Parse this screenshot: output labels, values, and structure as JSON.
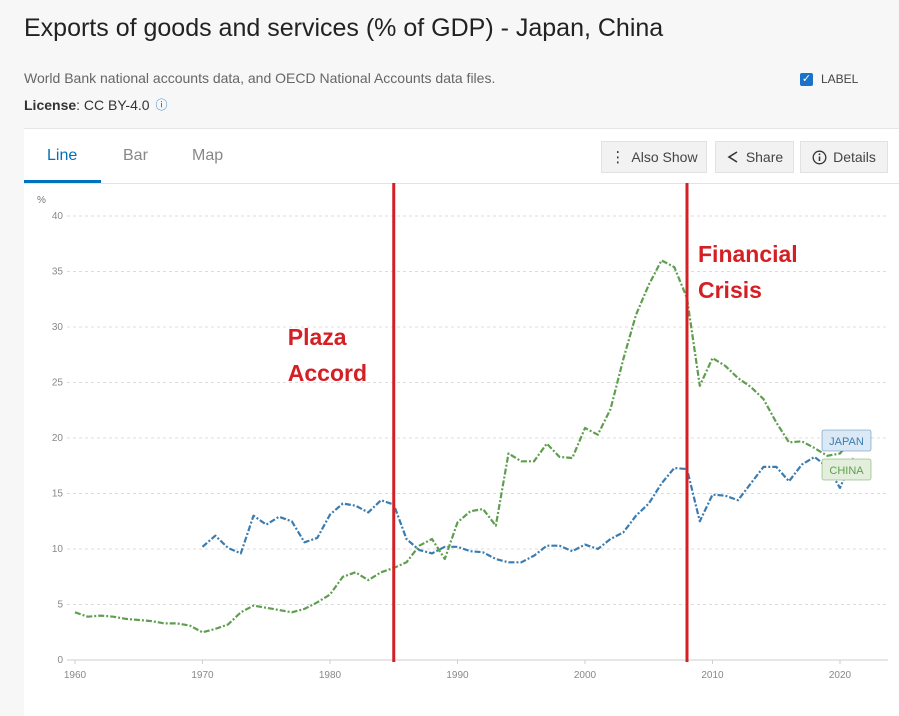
{
  "header": {
    "title": "Exports of goods and services (% of GDP) - Japan, China",
    "source": "World Bank national accounts data, and OECD National Accounts data files.",
    "license_label": "License",
    "license_value": ": CC BY-4.0",
    "info_icon": "ⓘ"
  },
  "tabs": [
    {
      "label": "Line",
      "active": true
    },
    {
      "label": "Bar",
      "active": false
    },
    {
      "label": "Map",
      "active": false
    }
  ],
  "toolbar": {
    "also_show": "Also Show",
    "share": "Share",
    "details": "Details"
  },
  "label_toggle": {
    "label": "LABEL",
    "checked": true
  },
  "annotations": [
    {
      "text_line1": "Plaza",
      "text_line2": "Accord",
      "year": 1985
    },
    {
      "text_line1": "Financial",
      "text_line2": "Crisis",
      "year": 2008
    }
  ],
  "colors": {
    "japan": "#3b7cb0",
    "china": "#5f9e4f",
    "annotation": "#d42025",
    "japan_tag_bg": "#dbe9f6",
    "china_tag_bg": "#e3efdc"
  },
  "chart_data": {
    "type": "line",
    "ylabel": "%",
    "xlim": [
      1960,
      2023
    ],
    "ylim": [
      0,
      40
    ],
    "x_ticks": [
      1960,
      1970,
      1980,
      1990,
      2000,
      2010,
      2020
    ],
    "y_ticks": [
      0,
      5,
      10,
      15,
      20,
      25,
      30,
      35,
      40
    ],
    "grid": true,
    "series": [
      {
        "name": "JAPAN",
        "x": [
          1970,
          1971,
          1972,
          1973,
          1974,
          1975,
          1976,
          1977,
          1978,
          1979,
          1980,
          1981,
          1982,
          1983,
          1984,
          1985,
          1986,
          1987,
          1988,
          1989,
          1990,
          1991,
          1992,
          1993,
          1994,
          1995,
          1996,
          1997,
          1998,
          1999,
          2000,
          2001,
          2002,
          2003,
          2004,
          2005,
          2006,
          2007,
          2008,
          2009,
          2010,
          2011,
          2012,
          2013,
          2014,
          2015,
          2016,
          2017,
          2018,
          2019,
          2020,
          2021
        ],
        "y": [
          10.2,
          11.2,
          10.1,
          9.6,
          13.0,
          12.2,
          12.9,
          12.5,
          10.6,
          11.0,
          13.1,
          14.1,
          13.9,
          13.3,
          14.4,
          14.0,
          10.9,
          9.9,
          9.6,
          10.2,
          10.2,
          9.8,
          9.7,
          9.1,
          8.8,
          8.8,
          9.4,
          10.3,
          10.3,
          9.8,
          10.4,
          10.0,
          10.9,
          11.5,
          13.0,
          14.1,
          15.9,
          17.3,
          17.2,
          12.5,
          14.9,
          14.8,
          14.4,
          15.9,
          17.4,
          17.4,
          16.1,
          17.6,
          18.3,
          17.4,
          15.5,
          18.2
        ]
      },
      {
        "name": "CHINA",
        "x": [
          1960,
          1961,
          1962,
          1963,
          1964,
          1965,
          1966,
          1967,
          1968,
          1969,
          1970,
          1971,
          1972,
          1973,
          1974,
          1975,
          1976,
          1977,
          1978,
          1979,
          1980,
          1981,
          1982,
          1983,
          1984,
          1985,
          1986,
          1987,
          1988,
          1989,
          1990,
          1991,
          1992,
          1993,
          1994,
          1995,
          1996,
          1997,
          1998,
          1999,
          2000,
          2001,
          2002,
          2003,
          2004,
          2005,
          2006,
          2007,
          2008,
          2009,
          2010,
          2011,
          2012,
          2013,
          2014,
          2015,
          2016,
          2017,
          2018,
          2019,
          2020,
          2021
        ],
        "y": [
          4.3,
          3.9,
          4.0,
          3.9,
          3.7,
          3.6,
          3.5,
          3.3,
          3.3,
          3.1,
          2.5,
          2.8,
          3.2,
          4.3,
          4.9,
          4.7,
          4.5,
          4.3,
          4.6,
          5.2,
          5.9,
          7.5,
          7.9,
          7.2,
          7.9,
          8.3,
          8.8,
          10.3,
          10.9,
          9.1,
          12.4,
          13.4,
          13.6,
          12.1,
          18.6,
          17.9,
          17.9,
          19.5,
          18.3,
          18.2,
          20.9,
          20.3,
          22.6,
          27.1,
          31.1,
          33.8,
          36.0,
          35.4,
          32.6,
          24.7,
          27.2,
          26.5,
          25.4,
          24.6,
          23.5,
          21.4,
          19.6,
          19.7,
          19.1,
          18.4,
          18.6,
          20.0
        ]
      }
    ]
  }
}
